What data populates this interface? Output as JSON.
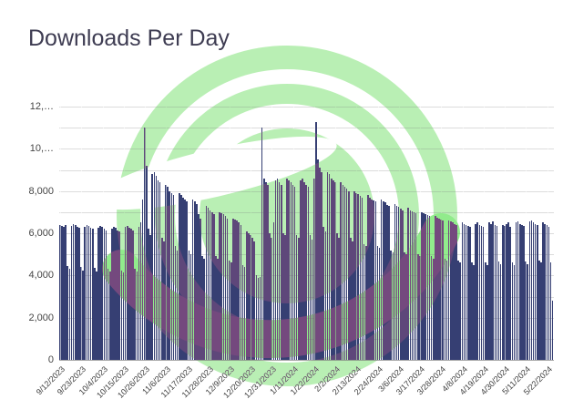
{
  "title": "Downloads Per Day",
  "colors": {
    "bar": "#363f73",
    "title_text": "#3e3c52",
    "axis_text": "#3c3c3c",
    "gridline": "#dcdcdc",
    "watermark_green_on_white": "#b9efb4",
    "watermark_swoosh_green_on_white": "#91eb8c",
    "bars_tinted_purple_under_watermark": "#5f478c",
    "watermark_exclusion_ring_source": "#46104b",
    "watermark_exclusion_swoosh_source": "#6e1473"
  },
  "watermark": {
    "name": "green-circular-logo-watermark"
  },
  "chart_data": {
    "type": "bar",
    "title": "Downloads Per Day",
    "xlabel": "",
    "ylabel": "",
    "start_date": "9/12/2023",
    "end_date": "5/25/2024",
    "x_unit": "day",
    "tick_interval_days": 11,
    "x_tick_labels": [
      "9/12/2023",
      "9/23/2023",
      "10/4/2023",
      "10/15/2023",
      "10/26/2023",
      "11/6/2023",
      "11/17/2023",
      "11/28/2023",
      "12/9/2023",
      "12/20/2023",
      "12/31/2023",
      "1/11/2024",
      "1/22/2024",
      "2/2/2024",
      "2/13/2024",
      "2/24/2024",
      "3/6/2024",
      "3/17/2024",
      "3/28/2024",
      "4/8/2024",
      "4/19/2024",
      "4/30/2024",
      "5/11/2024",
      "5/22/2024"
    ],
    "y_tick_labels": [
      "12,…",
      "10,…",
      "8,000",
      "6,000",
      "4,000",
      "2,000",
      "0"
    ],
    "ylim": [
      0,
      12000
    ],
    "gridline_step": 1000,
    "label_step": 2000,
    "grid": true,
    "legend": false,
    "values": [
      6400,
      6350,
      6300,
      6400,
      4450,
      4300,
      6350,
      6450,
      6400,
      6300,
      6250,
      4400,
      4250,
      6300,
      6400,
      6350,
      6250,
      6200,
      4350,
      4200,
      6250,
      6350,
      6300,
      6200,
      6150,
      4300,
      4200,
      6200,
      6300,
      6250,
      6150,
      6100,
      4250,
      4150,
      6300,
      6350,
      6250,
      6200,
      6150,
      4300,
      4200,
      6300,
      6500,
      7600,
      11000,
      9200,
      6200,
      5900,
      8800,
      8900,
      8700,
      8500,
      8400,
      5800,
      5600,
      8300,
      8200,
      8000,
      7900,
      7800,
      5400,
      5200,
      7900,
      7800,
      7700,
      7600,
      7500,
      5200,
      5000,
      7600,
      7500,
      7400,
      6900,
      6700,
      4900,
      4800,
      7300,
      7200,
      7100,
      7000,
      6900,
      4900,
      4800,
      7000,
      6950,
      6900,
      6800,
      6700,
      4700,
      4600,
      6700,
      6650,
      6600,
      6500,
      6400,
      4500,
      4400,
      6100,
      6000,
      5900,
      5800,
      5600,
      4000,
      3900,
      3950,
      11000,
      8600,
      8400,
      8300,
      6000,
      5800,
      6500,
      8500,
      8600,
      8400,
      8300,
      6000,
      5900,
      8600,
      8500,
      8400,
      8300,
      8200,
      5900,
      5800,
      8500,
      8600,
      8400,
      8300,
      8200,
      5900,
      5700,
      8600,
      11250,
      9500,
      9100,
      8900,
      6300,
      6100,
      8900,
      8800,
      8600,
      8500,
      8400,
      6000,
      5800,
      8400,
      8300,
      8200,
      8100,
      8000,
      5800,
      5600,
      8000,
      7900,
      7850,
      7750,
      7700,
      5500,
      5400,
      7800,
      7700,
      7600,
      7550,
      7500,
      5400,
      5300,
      7600,
      7500,
      7450,
      7350,
      7300,
      5200,
      5100,
      7400,
      7300,
      7250,
      7150,
      7100,
      5100,
      5000,
      7200,
      7100,
      7050,
      7000,
      6950,
      5000,
      4900,
      7000,
      6950,
      6900,
      6850,
      6800,
      4900,
      4800,
      6800,
      6750,
      6700,
      6650,
      6600,
      4800,
      4700,
      6600,
      6550,
      6500,
      6450,
      6400,
      4700,
      4600,
      6500,
      6450,
      6400,
      6350,
      6300,
      4600,
      4500,
      6450,
      6500,
      6400,
      6350,
      6300,
      4600,
      4500,
      6500,
      6450,
      6550,
      6400,
      6350,
      4650,
      4550,
      6400,
      6350,
      6450,
      6500,
      6300,
      4600,
      4500,
      6500,
      6550,
      6450,
      6400,
      6350,
      4650,
      4550,
      6550,
      6600,
      6500,
      6450,
      6400,
      4700,
      4600,
      6500,
      6450,
      6400,
      6300,
      4600,
      2800
    ]
  }
}
